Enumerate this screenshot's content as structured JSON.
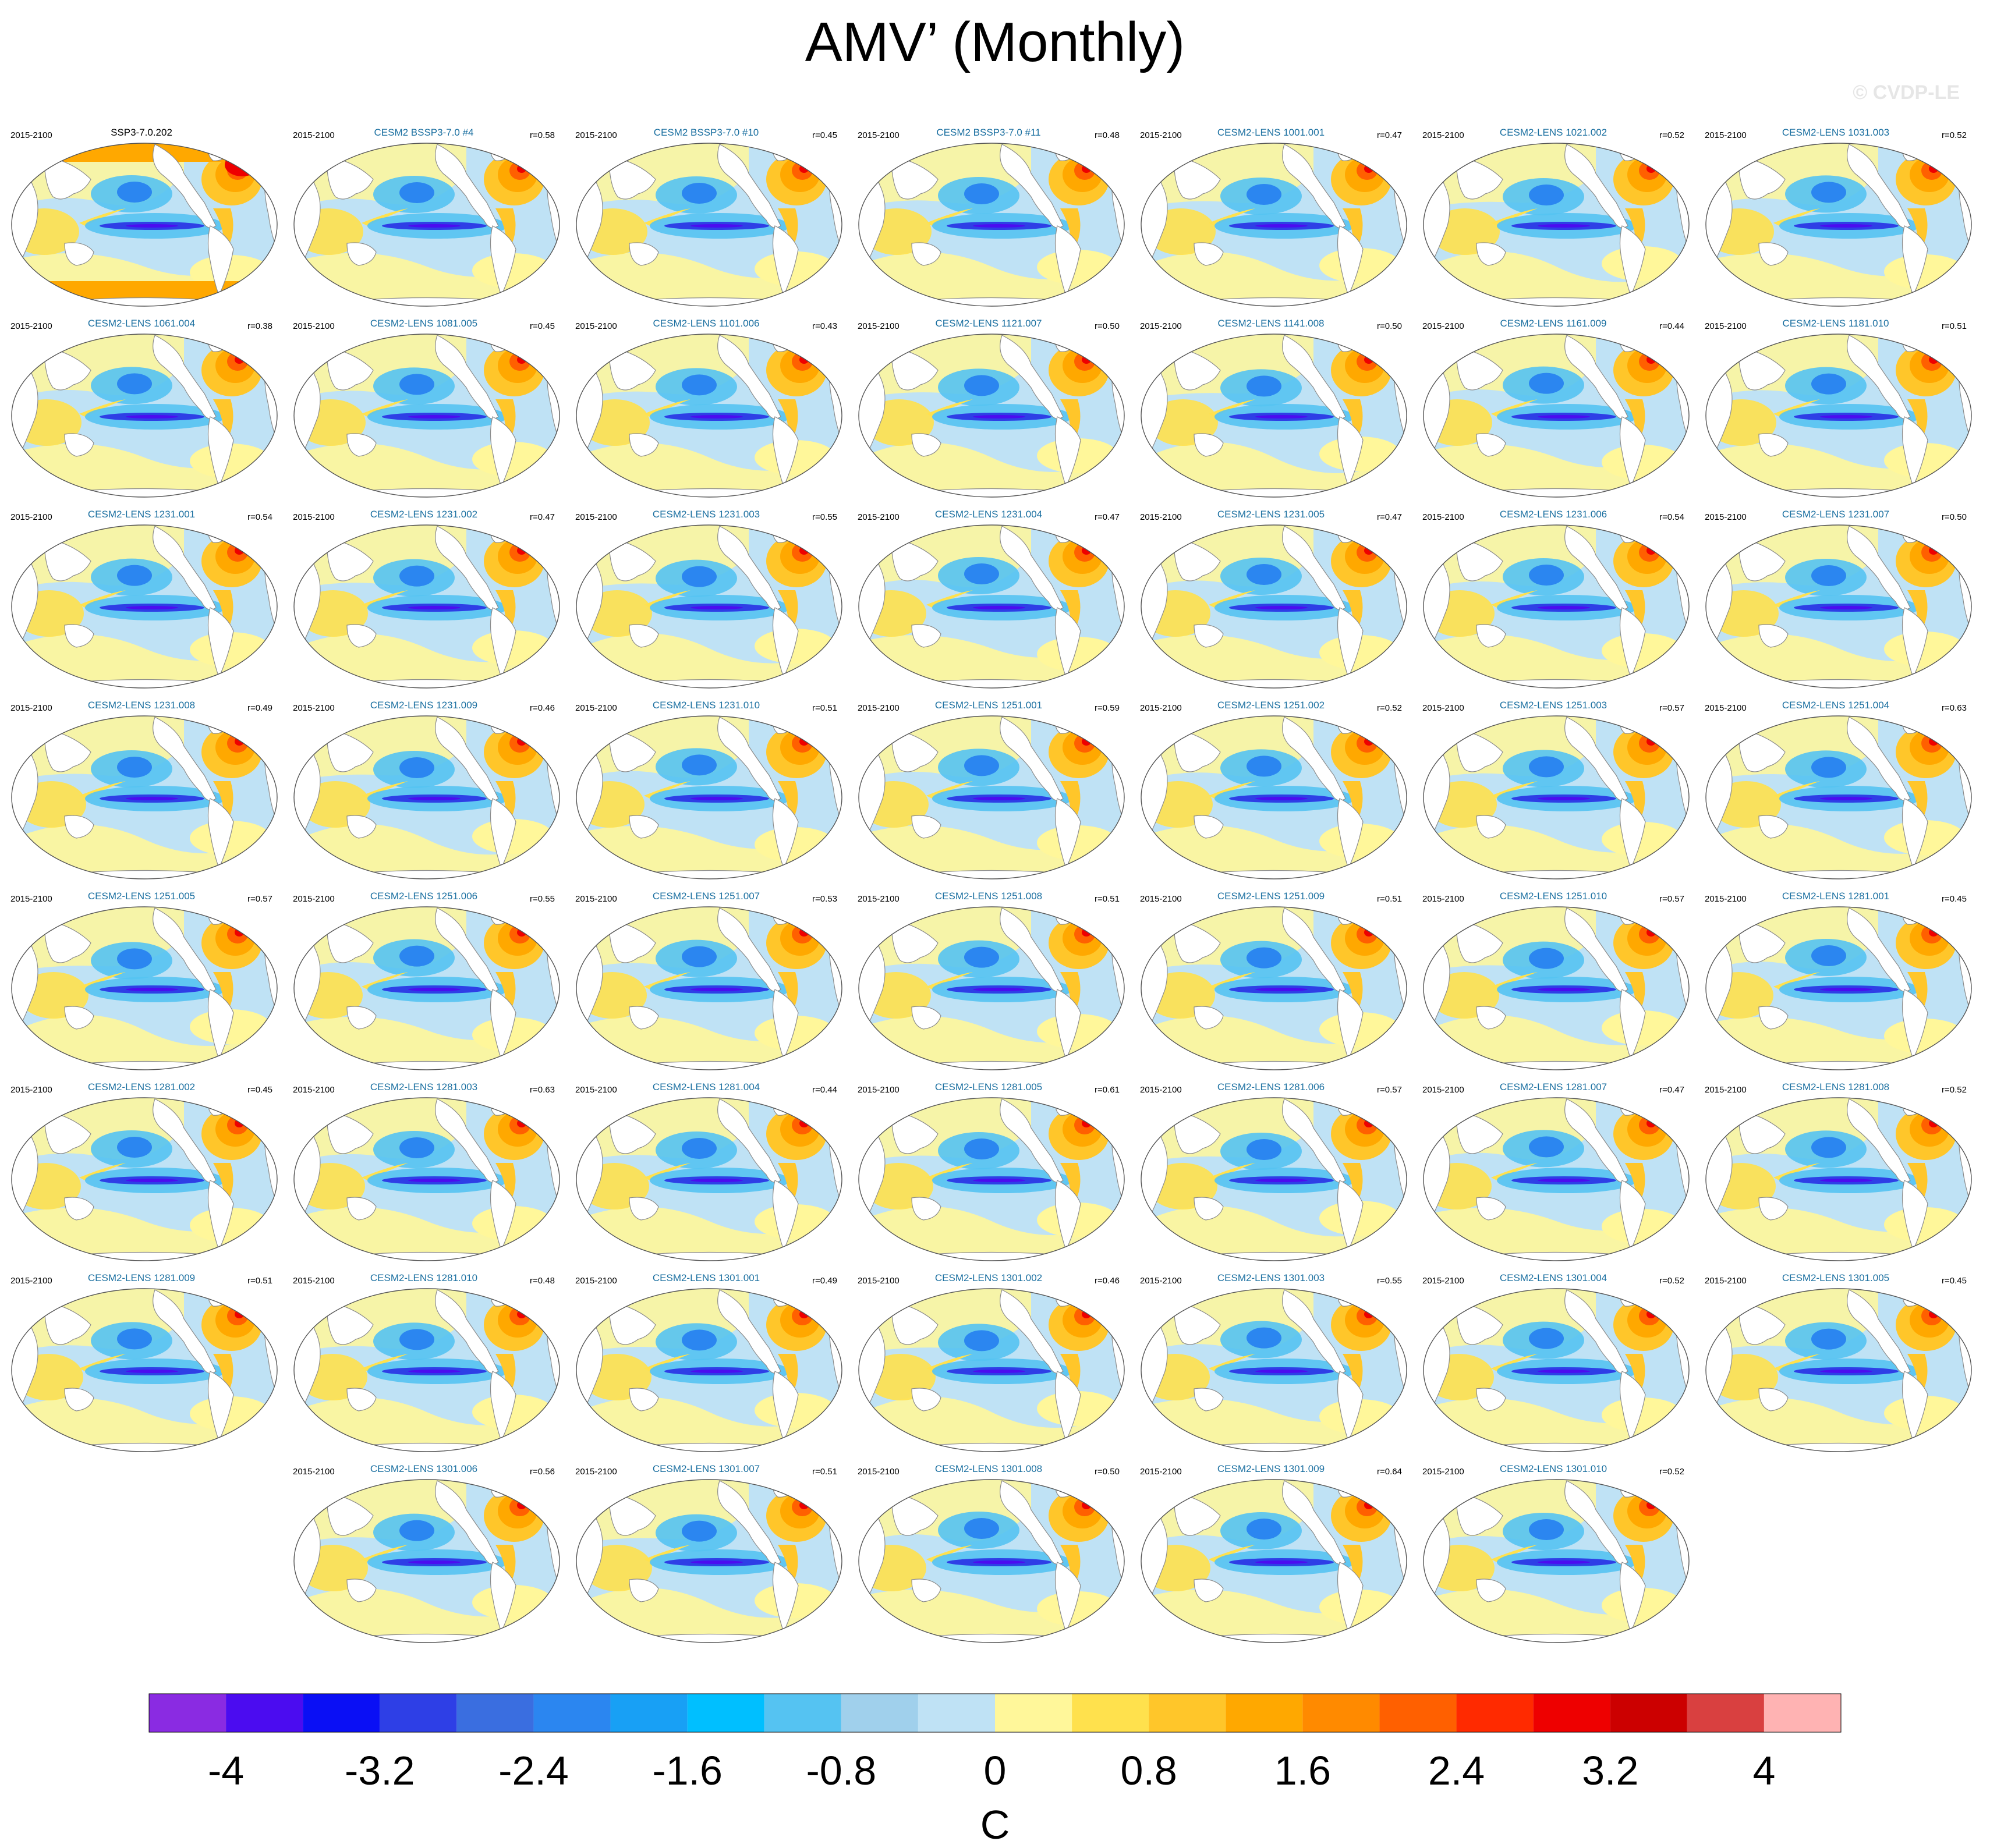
{
  "title": "AMV’ (Monthly)",
  "watermark": "© CVDP-LE",
  "colorbar": {
    "label": "C",
    "colors": [
      "#8a2be2",
      "#4b0cf0",
      "#0a0ff5",
      "#2e3fe6",
      "#3a6ee0",
      "#2b86f0",
      "#18a0f5",
      "#00bfff",
      "#55c3f2",
      "#a0d0ec",
      "#bfe2f5",
      "#fff79a",
      "#ffe14d",
      "#ffc62a",
      "#ffa800",
      "#ff8a00",
      "#ff6000",
      "#ff2a00",
      "#ee0000",
      "#cc0000",
      "#d94040",
      "#ffb3b3"
    ],
    "tick_labels": [
      "-4",
      "-3.2",
      "-2.4",
      "-1.6",
      "-0.8",
      "0",
      "0.8",
      "1.6",
      "2.4",
      "3.2",
      "4"
    ]
  },
  "panels": [
    {
      "name": "SSP3-7.0.202",
      "period": "2015-2100",
      "r": "",
      "obs": true
    },
    {
      "name": "CESM2 BSSP3-7.0 #4",
      "period": "2015-2100",
      "r": "r=0.58"
    },
    {
      "name": "CESM2 BSSP3-7.0 #10",
      "period": "2015-2100",
      "r": "r=0.45"
    },
    {
      "name": "CESM2 BSSP3-7.0 #11",
      "period": "2015-2100",
      "r": "r=0.48"
    },
    {
      "name": "CESM2-LENS 1001.001",
      "period": "2015-2100",
      "r": "r=0.47"
    },
    {
      "name": "CESM2-LENS 1021.002",
      "period": "2015-2100",
      "r": "r=0.52"
    },
    {
      "name": "CESM2-LENS 1031.003",
      "period": "2015-2100",
      "r": "r=0.52"
    },
    {
      "name": "CESM2-LENS 1061.004",
      "period": "2015-2100",
      "r": "r=0.38"
    },
    {
      "name": "CESM2-LENS 1081.005",
      "period": "2015-2100",
      "r": "r=0.45"
    },
    {
      "name": "CESM2-LENS 1101.006",
      "period": "2015-2100",
      "r": "r=0.43"
    },
    {
      "name": "CESM2-LENS 1121.007",
      "period": "2015-2100",
      "r": "r=0.50"
    },
    {
      "name": "CESM2-LENS 1141.008",
      "period": "2015-2100",
      "r": "r=0.50"
    },
    {
      "name": "CESM2-LENS 1161.009",
      "period": "2015-2100",
      "r": "r=0.44"
    },
    {
      "name": "CESM2-LENS 1181.010",
      "period": "2015-2100",
      "r": "r=0.51"
    },
    {
      "name": "CESM2-LENS 1231.001",
      "period": "2015-2100",
      "r": "r=0.54"
    },
    {
      "name": "CESM2-LENS 1231.002",
      "period": "2015-2100",
      "r": "r=0.47"
    },
    {
      "name": "CESM2-LENS 1231.003",
      "period": "2015-2100",
      "r": "r=0.55"
    },
    {
      "name": "CESM2-LENS 1231.004",
      "period": "2015-2100",
      "r": "r=0.47"
    },
    {
      "name": "CESM2-LENS 1231.005",
      "period": "2015-2100",
      "r": "r=0.47"
    },
    {
      "name": "CESM2-LENS 1231.006",
      "period": "2015-2100",
      "r": "r=0.54"
    },
    {
      "name": "CESM2-LENS 1231.007",
      "period": "2015-2100",
      "r": "r=0.50"
    },
    {
      "name": "CESM2-LENS 1231.008",
      "period": "2015-2100",
      "r": "r=0.49"
    },
    {
      "name": "CESM2-LENS 1231.009",
      "period": "2015-2100",
      "r": "r=0.46"
    },
    {
      "name": "CESM2-LENS 1231.010",
      "period": "2015-2100",
      "r": "r=0.51"
    },
    {
      "name": "CESM2-LENS 1251.001",
      "period": "2015-2100",
      "r": "r=0.59"
    },
    {
      "name": "CESM2-LENS 1251.002",
      "period": "2015-2100",
      "r": "r=0.52"
    },
    {
      "name": "CESM2-LENS 1251.003",
      "period": "2015-2100",
      "r": "r=0.57"
    },
    {
      "name": "CESM2-LENS 1251.004",
      "period": "2015-2100",
      "r": "r=0.63"
    },
    {
      "name": "CESM2-LENS 1251.005",
      "period": "2015-2100",
      "r": "r=0.57"
    },
    {
      "name": "CESM2-LENS 1251.006",
      "period": "2015-2100",
      "r": "r=0.55"
    },
    {
      "name": "CESM2-LENS 1251.007",
      "period": "2015-2100",
      "r": "r=0.53"
    },
    {
      "name": "CESM2-LENS 1251.008",
      "period": "2015-2100",
      "r": "r=0.51"
    },
    {
      "name": "CESM2-LENS 1251.009",
      "period": "2015-2100",
      "r": "r=0.51"
    },
    {
      "name": "CESM2-LENS 1251.010",
      "period": "2015-2100",
      "r": "r=0.57"
    },
    {
      "name": "CESM2-LENS 1281.001",
      "period": "2015-2100",
      "r": "r=0.45"
    },
    {
      "name": "CESM2-LENS 1281.002",
      "period": "2015-2100",
      "r": "r=0.45"
    },
    {
      "name": "CESM2-LENS 1281.003",
      "period": "2015-2100",
      "r": "r=0.63"
    },
    {
      "name": "CESM2-LENS 1281.004",
      "period": "2015-2100",
      "r": "r=0.44"
    },
    {
      "name": "CESM2-LENS 1281.005",
      "period": "2015-2100",
      "r": "r=0.61"
    },
    {
      "name": "CESM2-LENS 1281.006",
      "period": "2015-2100",
      "r": "r=0.57"
    },
    {
      "name": "CESM2-LENS 1281.007",
      "period": "2015-2100",
      "r": "r=0.47"
    },
    {
      "name": "CESM2-LENS 1281.008",
      "period": "2015-2100",
      "r": "r=0.52"
    },
    {
      "name": "CESM2-LENS 1281.009",
      "period": "2015-2100",
      "r": "r=0.51"
    },
    {
      "name": "CESM2-LENS 1281.010",
      "period": "2015-2100",
      "r": "r=0.48"
    },
    {
      "name": "CESM2-LENS 1301.001",
      "period": "2015-2100",
      "r": "r=0.49"
    },
    {
      "name": "CESM2-LENS 1301.002",
      "period": "2015-2100",
      "r": "r=0.46"
    },
    {
      "name": "CESM2-LENS 1301.003",
      "period": "2015-2100",
      "r": "r=0.55"
    },
    {
      "name": "CESM2-LENS 1301.004",
      "period": "2015-2100",
      "r": "r=0.52"
    },
    {
      "name": "CESM2-LENS 1301.005",
      "period": "2015-2100",
      "r": "r=0.45"
    },
    {
      "name": "CESM2-LENS 1301.006",
      "period": "2015-2100",
      "r": "r=0.56"
    },
    {
      "name": "CESM2-LENS 1301.007",
      "period": "2015-2100",
      "r": "r=0.51"
    },
    {
      "name": "CESM2-LENS 1301.008",
      "period": "2015-2100",
      "r": "r=0.50"
    },
    {
      "name": "CESM2-LENS 1301.009",
      "period": "2015-2100",
      "r": "r=0.64"
    },
    {
      "name": "CESM2-LENS 1301.010",
      "period": "2015-2100",
      "r": "r=0.52"
    }
  ]
}
